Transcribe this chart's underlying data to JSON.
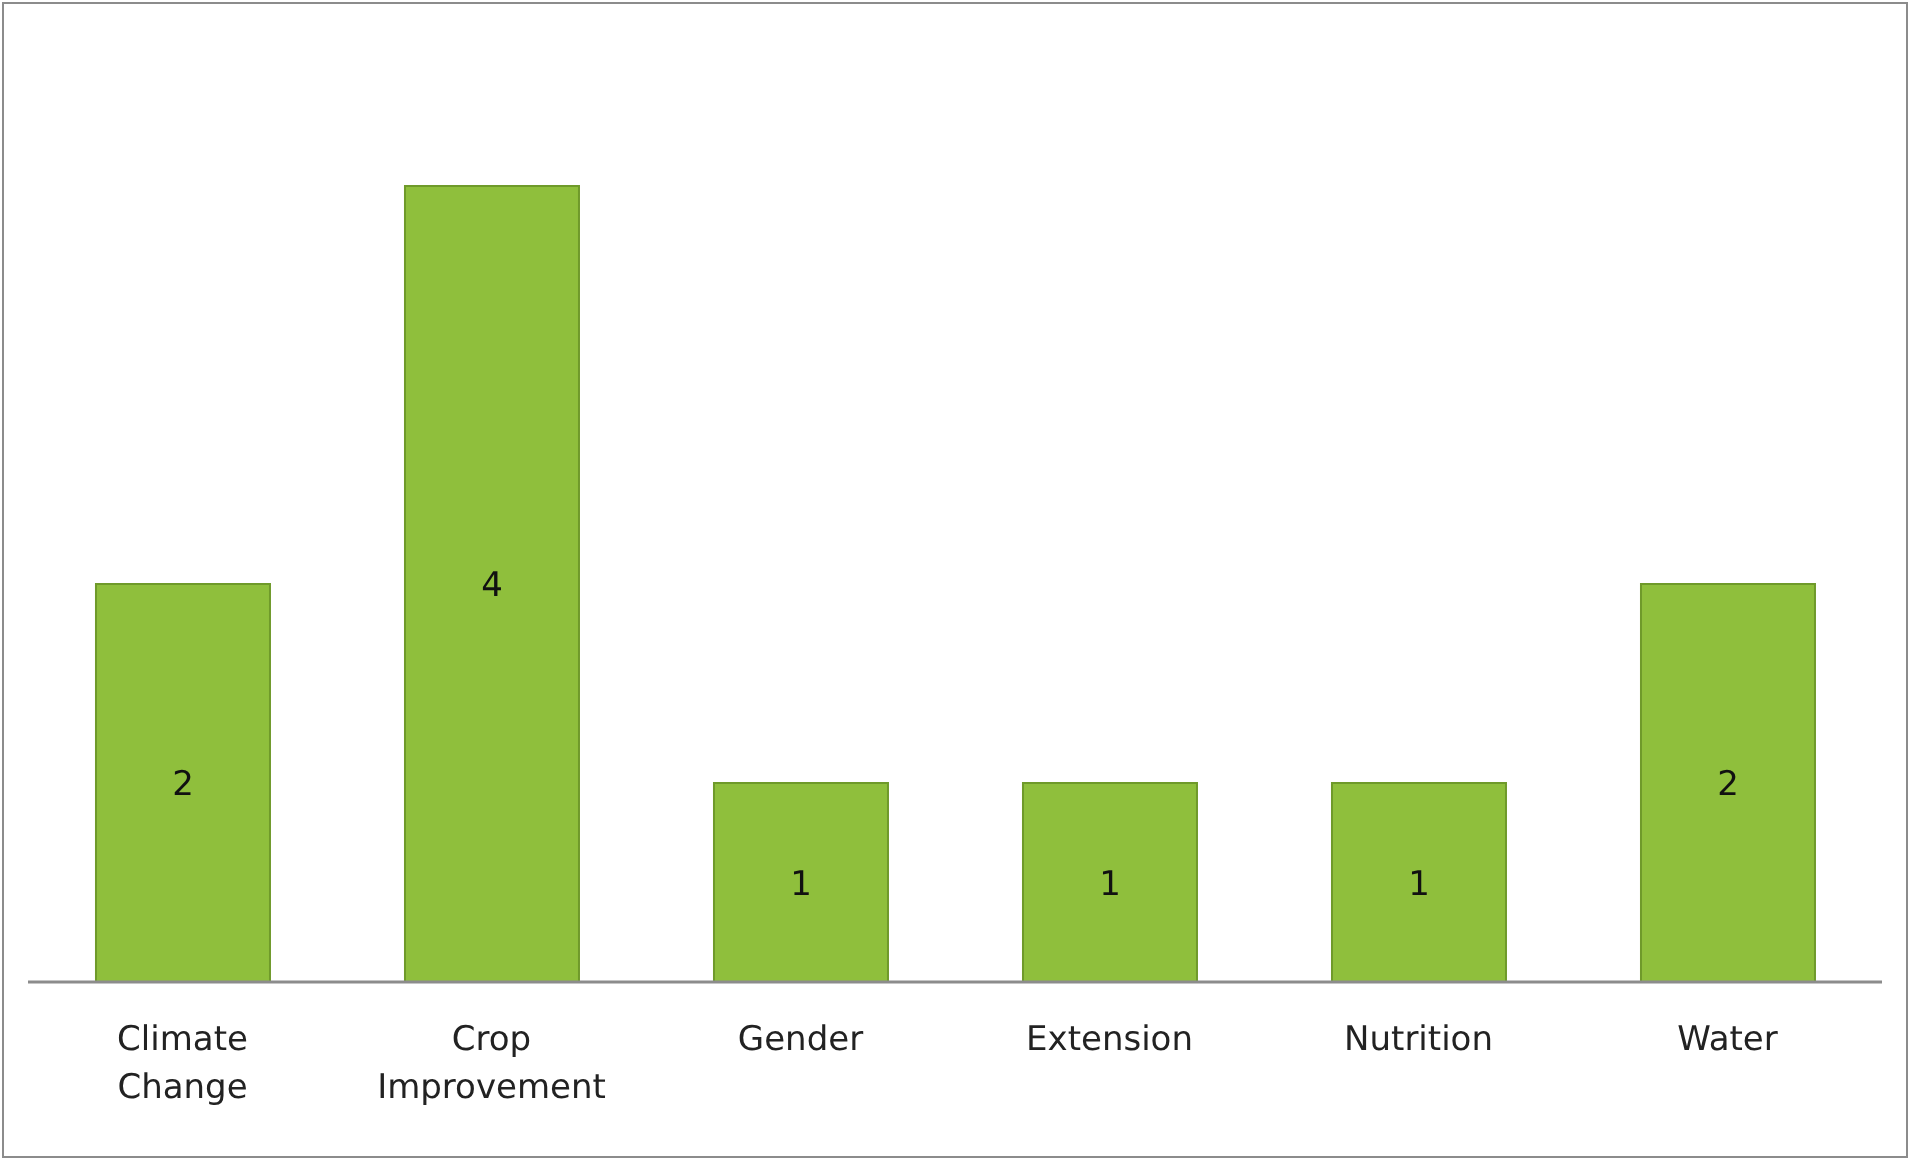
{
  "chart_data": {
    "type": "bar",
    "categories": [
      "Climate Change",
      "Crop Improvement",
      "Gender",
      "Extension",
      "Nutrition",
      "Water"
    ],
    "values": [
      2,
      4,
      1,
      1,
      1,
      2
    ],
    "color": "#8fbf3c",
    "data_labels": true,
    "grid": false,
    "legend": false
  }
}
